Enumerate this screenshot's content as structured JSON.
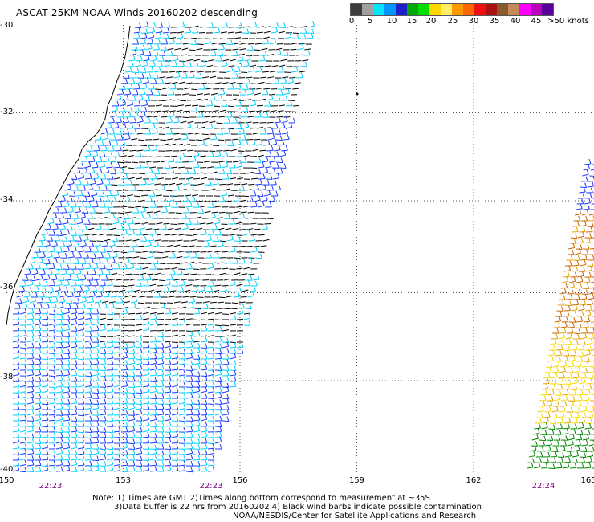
{
  "title": "ASCAT 25KM NOAA Winds 20160202 descending",
  "legend": {
    "colors": [
      "#3c3c3c",
      "#a0a0a0",
      "#00e6ff",
      "#0096ff",
      "#1e1ecc",
      "#00aa00",
      "#00dd00",
      "#ffd700",
      "#ffee66",
      "#ff9900",
      "#ff6600",
      "#ee1111",
      "#aa1111",
      "#8b5a2b",
      "#c48a5a",
      "#ff00ff",
      "#bb00bb",
      "#5a0099"
    ],
    "labels": [
      "0",
      "5",
      "10",
      "15",
      "20",
      "25",
      "30",
      "35",
      "40",
      "45",
      ">50 knots"
    ]
  },
  "axes": {
    "lon_labels": [
      "150",
      "153",
      "156",
      "159",
      "162",
      "165"
    ],
    "lat_labels": [
      "-30",
      "-32",
      "-34",
      "-36",
      "-38",
      "-40"
    ]
  },
  "pass_times": [
    "22:23",
    "22:23",
    "22:24"
  ],
  "notes": {
    "line1": "Note: 1) Times are GMT 2)Times along bottom correspond to measurement at ~35S",
    "line2": "3)Data buffer is 22 hrs from 20160202 4) Black wind barbs indicate possible contamination",
    "line3": "NOAA/NESDIS/Center for Satellite Applications and Research"
  }
}
